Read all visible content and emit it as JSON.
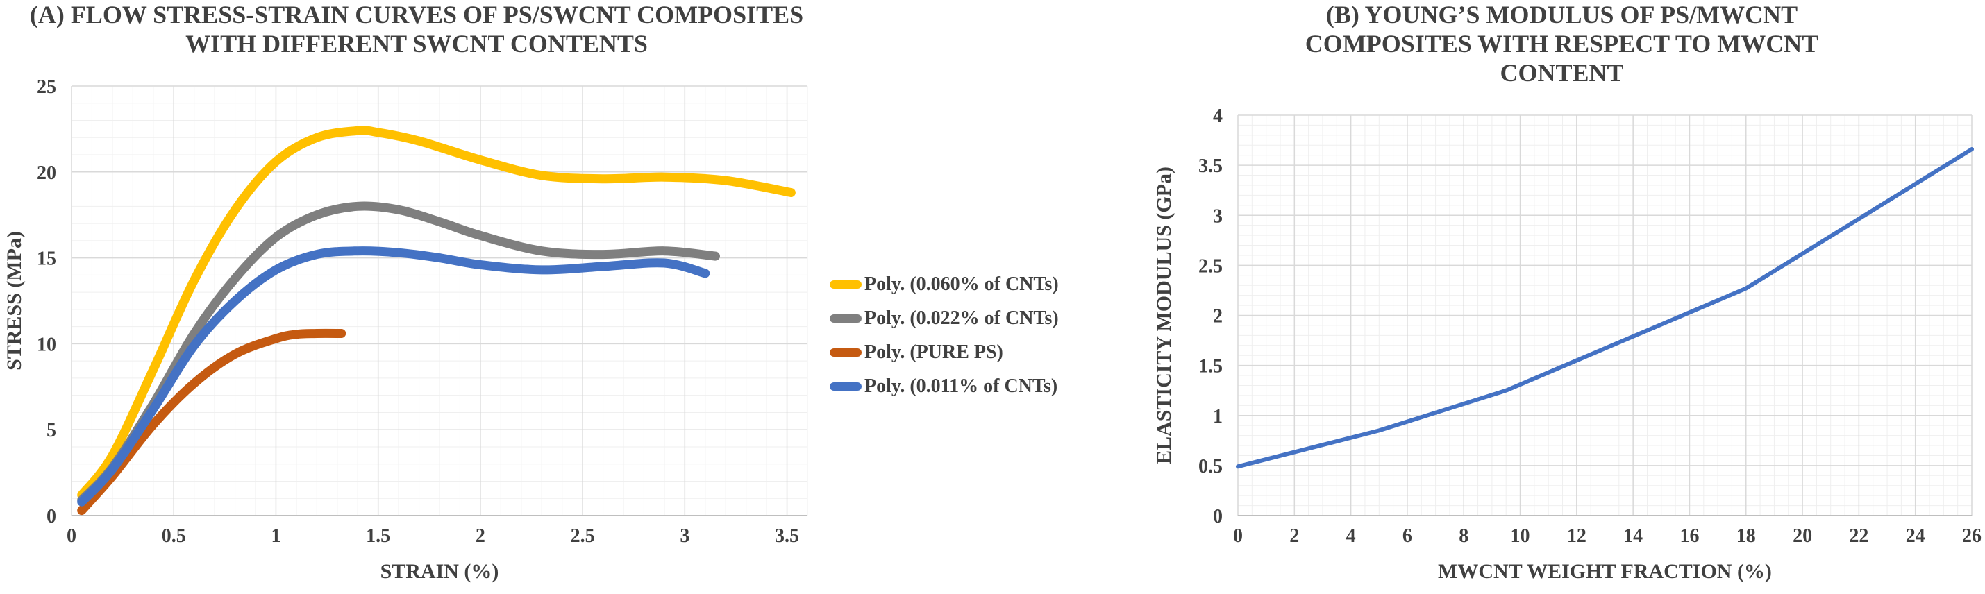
{
  "chart_data": [
    {
      "type": "line",
      "title": "(A) FLOW STRESS-STRAIN CURVES OF PS/SWCNT COMPOSITES\nWITH DIFFERENT SWCNT CONTENTS",
      "xlabel": "STRAIN (%)",
      "ylabel": "STRESS (MPa)",
      "xlim": [
        0,
        3.6
      ],
      "ylim": [
        0,
        25
      ],
      "xticks": [
        "0",
        "0.5",
        "1",
        "1.5",
        "2",
        "2.5",
        "3",
        "3.5"
      ],
      "yticks": [
        "0",
        "5",
        "10",
        "15",
        "20",
        "25"
      ],
      "grid": true,
      "legend_position": "right",
      "series": [
        {
          "name": "Poly. (0.060% of CNTs)",
          "color": "#FFC000",
          "x": [
            0.05,
            0.2,
            0.4,
            0.6,
            0.8,
            1.0,
            1.2,
            1.4,
            1.5,
            1.7,
            2.0,
            2.3,
            2.6,
            2.9,
            3.2,
            3.52
          ],
          "y": [
            1.2,
            3.5,
            8.5,
            13.7,
            17.8,
            20.6,
            22.0,
            22.4,
            22.3,
            21.8,
            20.7,
            19.8,
            19.6,
            19.7,
            19.5,
            18.8
          ]
        },
        {
          "name": "Poly. (0.022% of CNTs)",
          "color": "#7F7F7F",
          "x": [
            0.05,
            0.2,
            0.4,
            0.6,
            0.8,
            1.0,
            1.2,
            1.4,
            1.6,
            1.8,
            2.0,
            2.3,
            2.6,
            2.9,
            3.15
          ],
          "y": [
            0.9,
            2.8,
            6.5,
            10.6,
            13.8,
            16.2,
            17.5,
            18.0,
            17.8,
            17.1,
            16.3,
            15.4,
            15.2,
            15.4,
            15.1
          ]
        },
        {
          "name": "Poly. (PURE PS)",
          "color": "#C55A11",
          "x": [
            0.05,
            0.2,
            0.4,
            0.6,
            0.8,
            1.0,
            1.1,
            1.2,
            1.32
          ],
          "y": [
            0.3,
            2.3,
            5.3,
            7.7,
            9.4,
            10.3,
            10.55,
            10.6,
            10.6
          ]
        },
        {
          "name": "Poly. (0.011% of CNTs)",
          "color": "#4472C4",
          "x": [
            0.05,
            0.2,
            0.4,
            0.6,
            0.8,
            1.0,
            1.2,
            1.4,
            1.6,
            1.8,
            2.0,
            2.3,
            2.6,
            2.9,
            3.1
          ],
          "y": [
            0.8,
            2.7,
            6.2,
            9.9,
            12.5,
            14.3,
            15.2,
            15.4,
            15.3,
            15.0,
            14.6,
            14.3,
            14.5,
            14.7,
            14.1
          ]
        }
      ]
    },
    {
      "type": "line",
      "title": "(B) YOUNG’S MODULUS OF PS/MWCNT\nCOMPOSITES WITH RESPECT TO MWCNT\nCONTENT",
      "xlabel": "MWCNT WEIGHT FRACTION (%)",
      "ylabel": "ELASTICITY MODULUS (GPa)",
      "xlim": [
        0,
        26
      ],
      "ylim": [
        0,
        4
      ],
      "xticks": [
        "0",
        "2",
        "4",
        "6",
        "8",
        "10",
        "12",
        "14",
        "16",
        "18",
        "20",
        "22",
        "24",
        "26"
      ],
      "yticks": [
        "0",
        "0.5",
        "1",
        "1.5",
        "2",
        "2.5",
        "3",
        "3.5",
        "4"
      ],
      "grid": true,
      "series": [
        {
          "color": "#4472C4",
          "x": [
            0,
            5,
            9.5,
            18,
            26
          ],
          "y": [
            0.49,
            0.85,
            1.25,
            2.27,
            3.66
          ]
        }
      ]
    }
  ]
}
